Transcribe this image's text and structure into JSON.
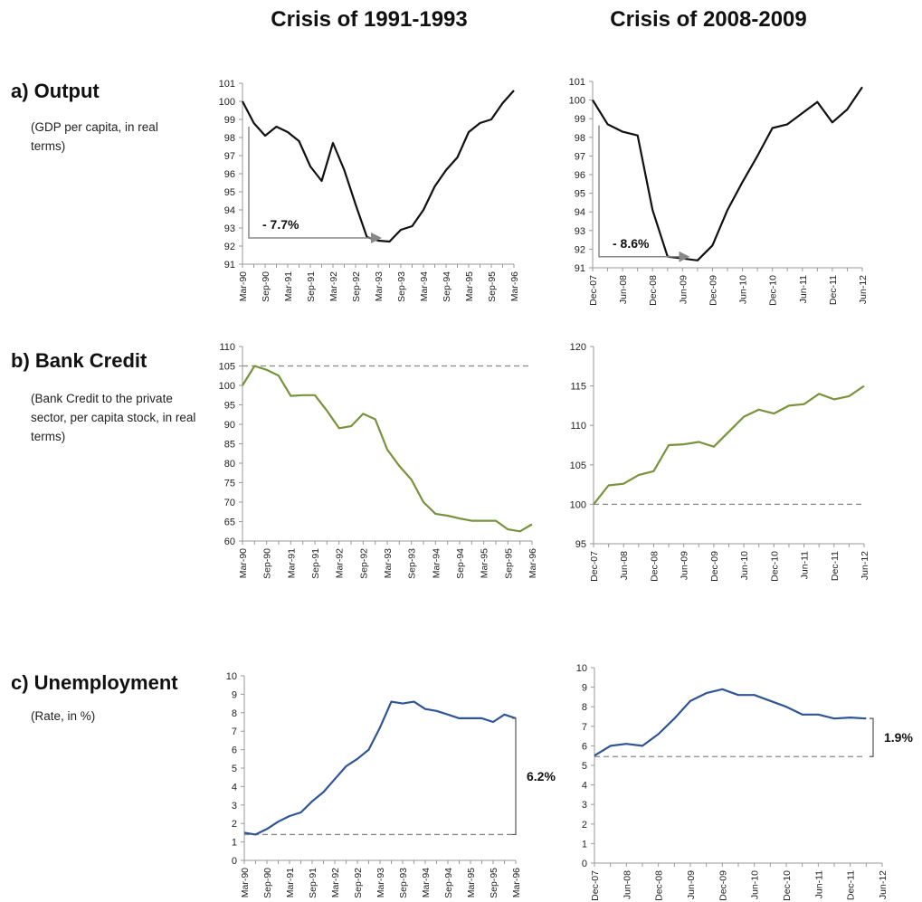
{
  "columns": [
    "Crisis of 1991-1993",
    "Crisis of 2008-2009"
  ],
  "rows": [
    {
      "title": "a) Output",
      "subtitle": "(GDP per capita, in real terms)"
    },
    {
      "title": "b) Bank Credit",
      "subtitle": "(Bank Credit to the private sector, per capita stock, in real terms)"
    },
    {
      "title": "c) Unemployment",
      "subtitle": "(Rate, in %)"
    }
  ],
  "chart_data": [
    {
      "type": "line",
      "color": "#111111",
      "categories": [
        "Mar-90",
        null,
        "Sep-90",
        null,
        "Mar-91",
        null,
        "Sep-91",
        null,
        "Mar-92",
        null,
        "Sep-92",
        null,
        "Mar-93",
        null,
        "Sep-93",
        null,
        "Mar-94",
        null,
        "Sep-94",
        null,
        "Mar-95",
        null,
        "Sep-95",
        null,
        "Mar-96"
      ],
      "values": [
        100.0,
        98.8,
        98.1,
        98.6,
        98.3,
        97.8,
        96.4,
        95.6,
        97.7,
        96.2,
        94.3,
        92.5,
        92.3,
        92.25,
        92.9,
        93.1,
        94.0,
        95.3,
        96.2,
        96.9,
        98.3,
        98.8,
        99.0,
        99.9,
        100.6
      ],
      "ylim": [
        91,
        101
      ],
      "yticks": [
        91,
        92,
        93,
        94,
        95,
        96,
        97,
        98,
        99,
        100,
        101
      ],
      "annotation": "- 7.7%"
    },
    {
      "type": "line",
      "color": "#111111",
      "categories": [
        "Dec-07",
        null,
        "Jun-08",
        null,
        "Dec-08",
        null,
        "Jun-09",
        null,
        "Dec-09",
        null,
        "Jun-10",
        null,
        "Dec-10",
        null,
        "Jun-11",
        null,
        "Dec-11",
        null,
        "Jun-12"
      ],
      "values": [
        100.0,
        98.7,
        98.3,
        98.1,
        94.1,
        91.6,
        91.5,
        91.4,
        92.2,
        94.1,
        95.6,
        97.0,
        98.5,
        98.7,
        99.3,
        99.9,
        98.8,
        99.5,
        100.7
      ],
      "ylim": [
        91,
        101
      ],
      "yticks": [
        91,
        92,
        93,
        94,
        95,
        96,
        97,
        98,
        99,
        100,
        101
      ],
      "annotation": "- 8.6%"
    },
    {
      "type": "line",
      "color": "#77933c",
      "categories": [
        "Mar-90",
        null,
        "Sep-90",
        null,
        "Mar-91",
        null,
        "Sep-91",
        null,
        "Mar-92",
        null,
        "Sep-92",
        null,
        "Mar-93",
        null,
        "Sep-93",
        null,
        "Mar-94",
        null,
        "Sep-94",
        null,
        "Mar-95",
        null,
        "Sep-95",
        null,
        "Mar-96"
      ],
      "values": [
        100,
        105,
        104,
        102.5,
        97.3,
        97.5,
        97.5,
        93.5,
        89,
        89.5,
        92.7,
        91.3,
        83.5,
        79.3,
        75.8,
        70,
        67,
        66.5,
        65.8,
        65.2,
        65.2,
        65.2,
        63,
        62.5,
        64.3
      ],
      "ylim": [
        60,
        110
      ],
      "yticks": [
        60,
        65,
        70,
        75,
        80,
        85,
        90,
        95,
        100,
        105,
        110
      ],
      "reference_line": 105
    },
    {
      "type": "line",
      "color": "#77933c",
      "categories": [
        "Dec-07",
        null,
        "Jun-08",
        null,
        "Dec-08",
        null,
        "Jun-09",
        null,
        "Dec-09",
        null,
        "Jun-10",
        null,
        "Dec-10",
        null,
        "Jun-11",
        null,
        "Dec-11",
        null,
        "Jun-12"
      ],
      "values": [
        100,
        102.4,
        102.6,
        103.7,
        104.2,
        107.5,
        107.6,
        107.9,
        107.3,
        109.2,
        111.1,
        112,
        111.5,
        112.5,
        112.7,
        114,
        113.3,
        113.7,
        115
      ],
      "ylim": [
        95,
        120
      ],
      "yticks": [
        95,
        100,
        105,
        110,
        115,
        120
      ],
      "reference_line": 100
    },
    {
      "type": "line",
      "color": "#2f5597",
      "categories": [
        "Mar-90",
        null,
        "Sep-90",
        null,
        "Mar-91",
        null,
        "Sep-91",
        null,
        "Mar-92",
        null,
        "Sep-92",
        null,
        "Mar-93",
        null,
        "Sep-93",
        null,
        "Mar-94",
        null,
        "Sep-94",
        null,
        "Mar-95",
        null,
        "Sep-95",
        null,
        "Mar-96"
      ],
      "values": [
        1.5,
        1.4,
        1.7,
        2.1,
        2.4,
        2.6,
        3.2,
        3.7,
        4.4,
        5.1,
        5.5,
        6.0,
        7.2,
        8.6,
        8.5,
        8.6,
        8.2,
        8.1,
        7.9,
        7.7,
        7.7,
        7.7,
        7.5,
        7.9,
        7.7
      ],
      "ylim": [
        0,
        10
      ],
      "yticks": [
        0,
        1,
        2,
        3,
        4,
        5,
        6,
        7,
        8,
        9,
        10
      ],
      "reference_line": 1.4,
      "annotation": "6.2%"
    },
    {
      "type": "line",
      "color": "#2f5597",
      "categories": [
        "Dec-07",
        null,
        "Jun-08",
        null,
        "Dec-08",
        null,
        "Jun-09",
        null,
        "Dec-09",
        null,
        "Jun-10",
        null,
        "Dec-10",
        null,
        "Jun-11",
        null,
        "Dec-11",
        null,
        "Jun-12"
      ],
      "values": [
        5.5,
        6.0,
        6.1,
        6.0,
        6.6,
        7.4,
        8.3,
        8.7,
        8.9,
        8.6,
        8.6,
        8.3,
        8.0,
        7.6,
        7.6,
        7.4,
        7.45,
        7.4,
        null
      ],
      "ylim": [
        0,
        10
      ],
      "yticks": [
        0,
        1,
        2,
        3,
        4,
        5,
        6,
        7,
        8,
        9,
        10
      ],
      "reference_line": 5.45,
      "annotation": "1.9%"
    }
  ]
}
